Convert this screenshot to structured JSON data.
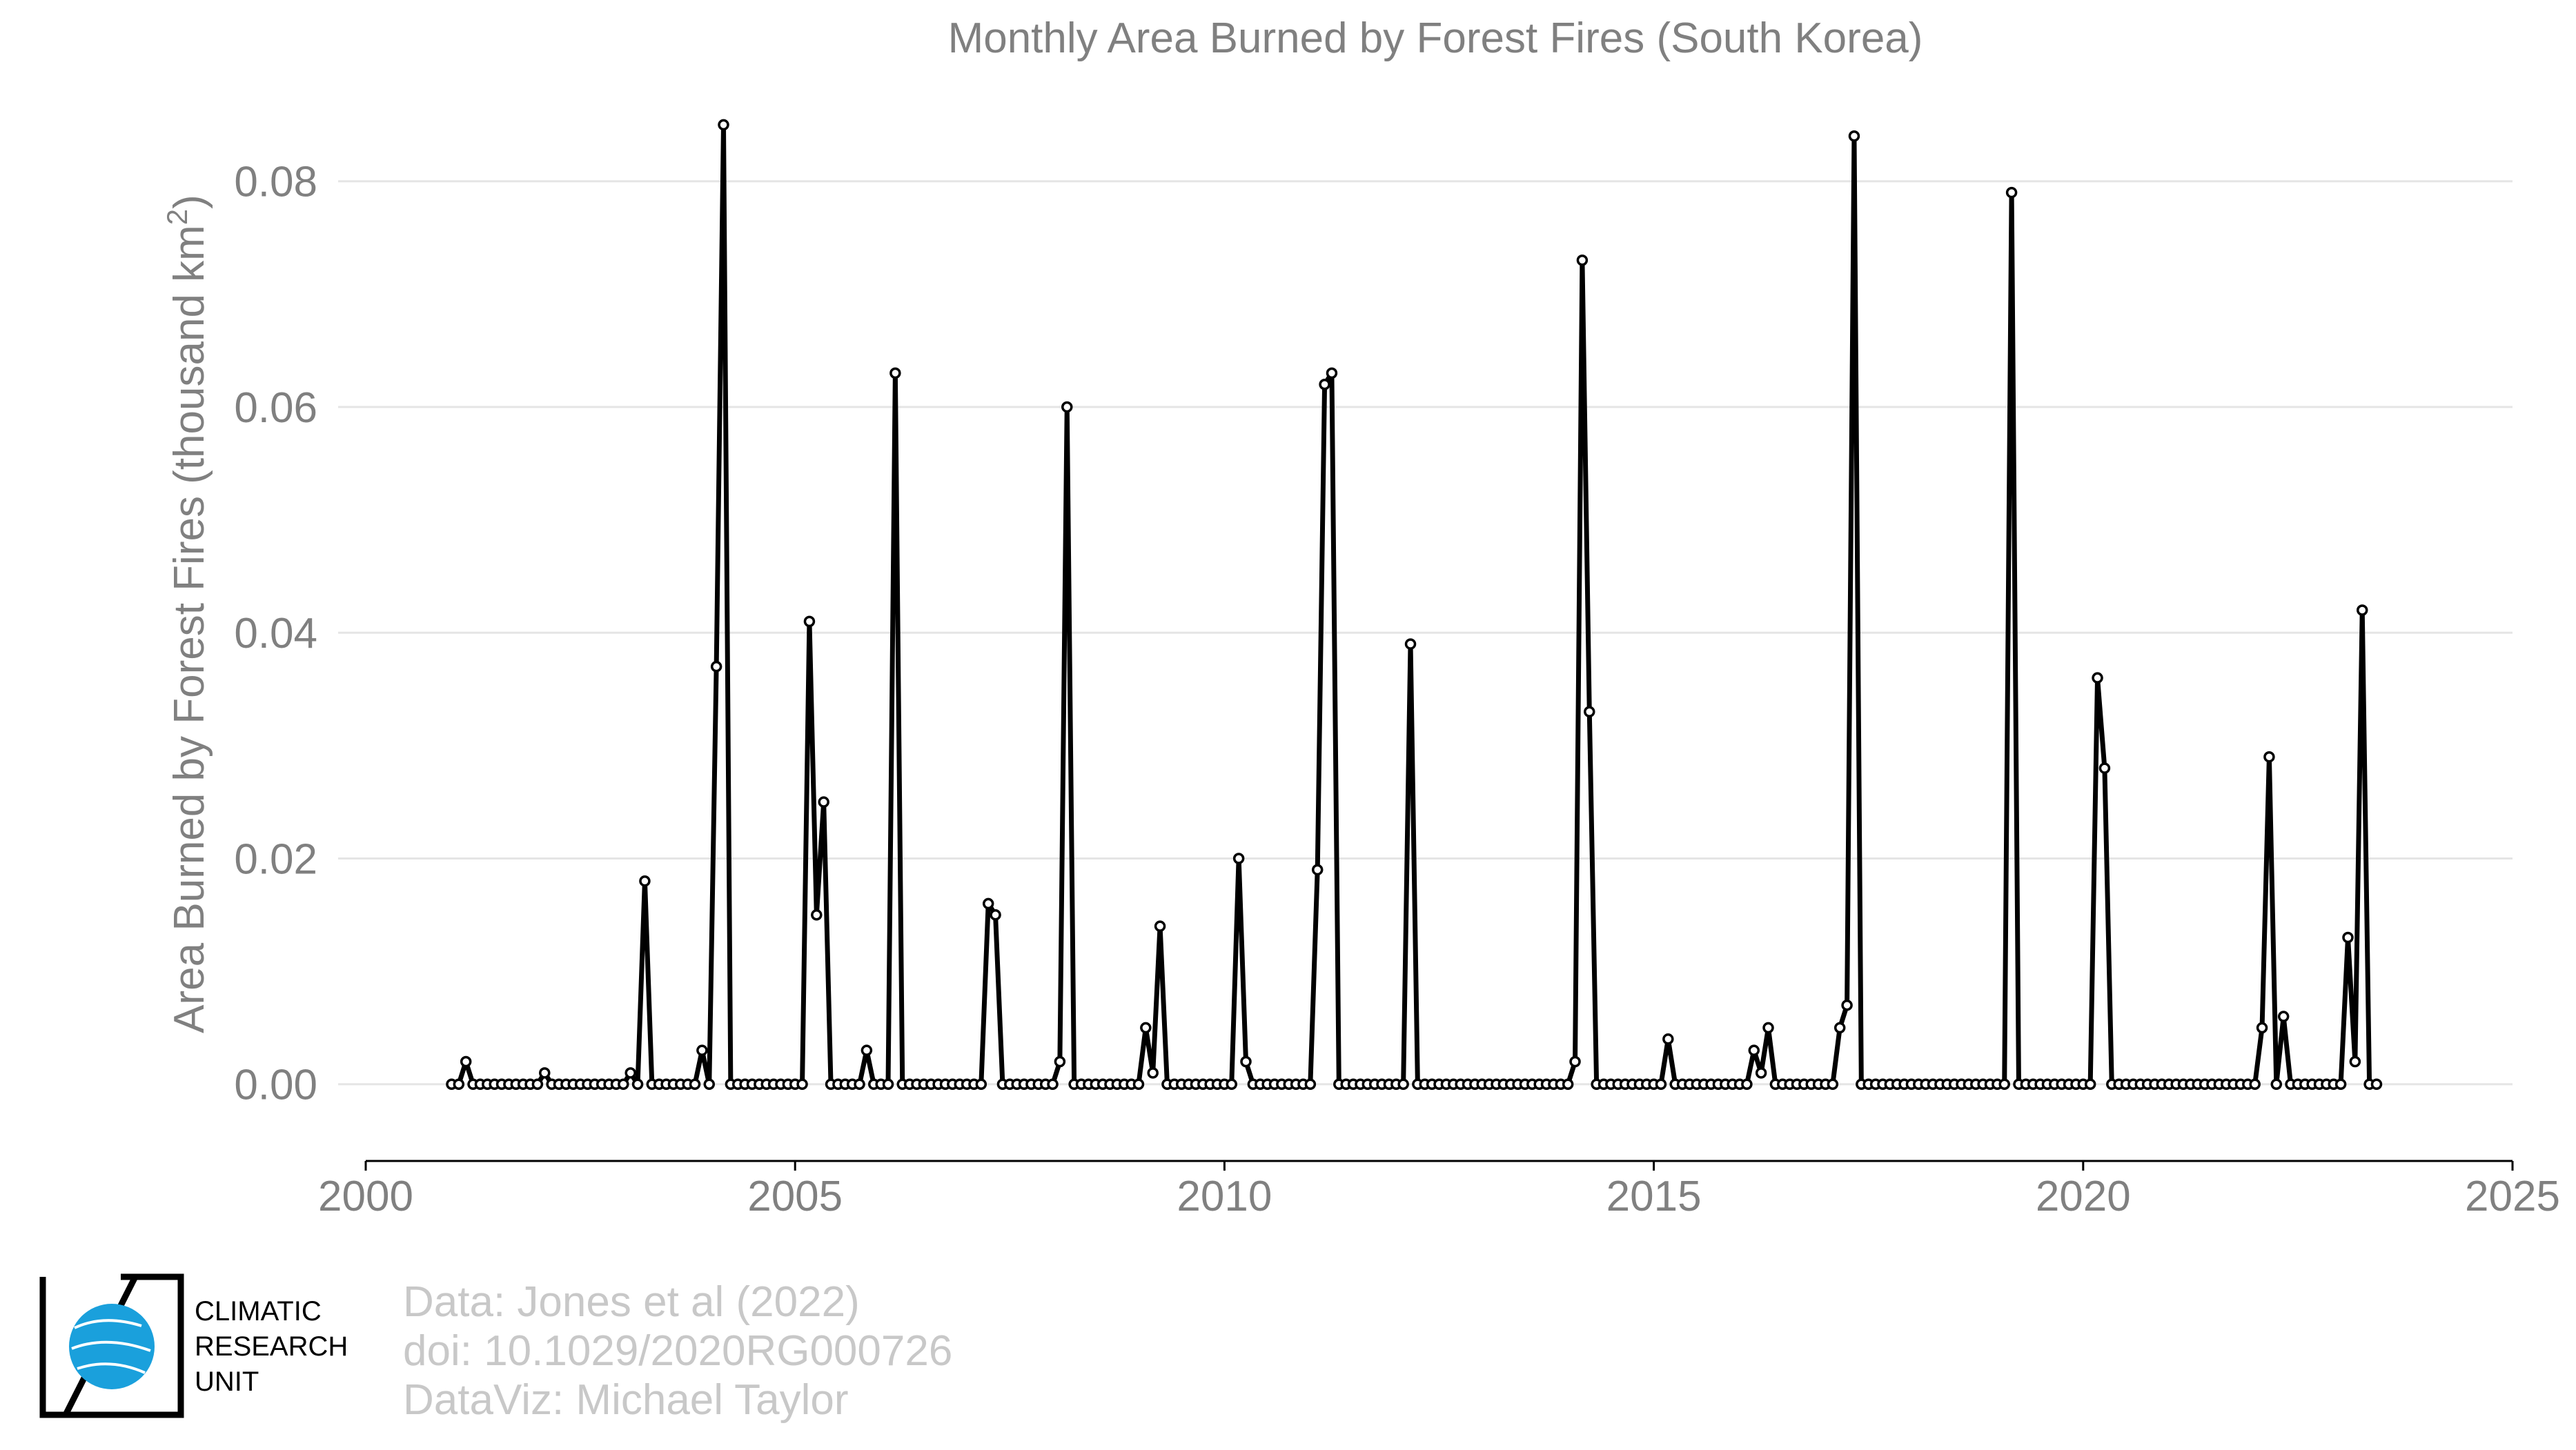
{
  "chart_data": {
    "type": "line",
    "title": "Monthly Area Burned by Forest Fires (South Korea)",
    "ylabel": "Area Burned by Forest Fires (thousand km",
    "ylabel_superscript": "2",
    "ylabel_close": ")",
    "xlabel": "",
    "xlim": [
      2000,
      2025
    ],
    "ylim": [
      -0.0068,
      0.0875
    ],
    "xticks": [
      2000,
      2005,
      2010,
      2015,
      2020,
      2025
    ],
    "xtick_labels": [
      "2000",
      "2005",
      "2010",
      "2015",
      "2020",
      "2025"
    ],
    "yticks": [
      0.0,
      0.02,
      0.04,
      0.06,
      0.08
    ],
    "ytick_labels": [
      "0.00",
      "0.02",
      "0.04",
      "0.06",
      "0.08"
    ],
    "grid": "horizontal",
    "series_color": "#000000",
    "x_start": "2001-01",
    "x_step": "monthly",
    "values": [
      0,
      0,
      0.002,
      0,
      0,
      0,
      0,
      0,
      0,
      0,
      0,
      0,
      0,
      0.001,
      0,
      0,
      0,
      0,
      0,
      0,
      0,
      0,
      0,
      0,
      0,
      0.001,
      0,
      0.018,
      0,
      0,
      0,
      0,
      0,
      0,
      0,
      0.003,
      0,
      0.037,
      0.085,
      0,
      0,
      0,
      0,
      0,
      0,
      0,
      0,
      0,
      0,
      0,
      0.041,
      0.015,
      0.025,
      0,
      0,
      0,
      0,
      0,
      0.003,
      0,
      0,
      0,
      0.063,
      0,
      0,
      0,
      0,
      0,
      0,
      0,
      0,
      0,
      0,
      0,
      0,
      0.016,
      0.015,
      0,
      0,
      0,
      0,
      0,
      0,
      0,
      0,
      0.002,
      0.06,
      0,
      0,
      0,
      0,
      0,
      0,
      0,
      0,
      0,
      0,
      0.005,
      0.001,
      0.014,
      0,
      0,
      0,
      0,
      0,
      0,
      0,
      0,
      0,
      0,
      0.02,
      0.002,
      0,
      0,
      0,
      0,
      0,
      0,
      0,
      0,
      0,
      0.019,
      0.062,
      0.063,
      0,
      0,
      0,
      0,
      0,
      0,
      0,
      0,
      0,
      0,
      0.039,
      0,
      0,
      0,
      0,
      0,
      0,
      0,
      0,
      0,
      0,
      0,
      0,
      0,
      0,
      0,
      0,
      0,
      0,
      0,
      0,
      0,
      0,
      0.002,
      0.073,
      0.033,
      0,
      0,
      0,
      0,
      0,
      0,
      0,
      0,
      0,
      0,
      0.004,
      0,
      0,
      0,
      0,
      0,
      0,
      0,
      0,
      0,
      0,
      0,
      0.003,
      0.001,
      0.005,
      0,
      0,
      0,
      0,
      0,
      0,
      0,
      0,
      0,
      0.005,
      0.007,
      0.084,
      0,
      0,
      0,
      0,
      0,
      0,
      0,
      0,
      0,
      0,
      0,
      0,
      0,
      0,
      0,
      0,
      0,
      0,
      0,
      0,
      0,
      0.079,
      0,
      0,
      0,
      0,
      0,
      0,
      0,
      0,
      0,
      0,
      0,
      0.036,
      0.028,
      0,
      0,
      0,
      0,
      0,
      0,
      0,
      0,
      0,
      0,
      0,
      0,
      0,
      0,
      0,
      0,
      0,
      0,
      0,
      0,
      0,
      0.005,
      0.029,
      0,
      0.006,
      0,
      0,
      0,
      0,
      0,
      0,
      0,
      0,
      0.013,
      0.002,
      0.042,
      0,
      0
    ]
  },
  "credits": {
    "line1": "Data: Jones et al (2022)",
    "line2": "doi: 10.1029/2020RG000726",
    "line3": "DataViz: Michael Taylor"
  },
  "logo": {
    "line1": "CLIMATIC",
    "line2": "RESEARCH",
    "line3": "UNIT",
    "globe_color": "#1aa0dc"
  }
}
